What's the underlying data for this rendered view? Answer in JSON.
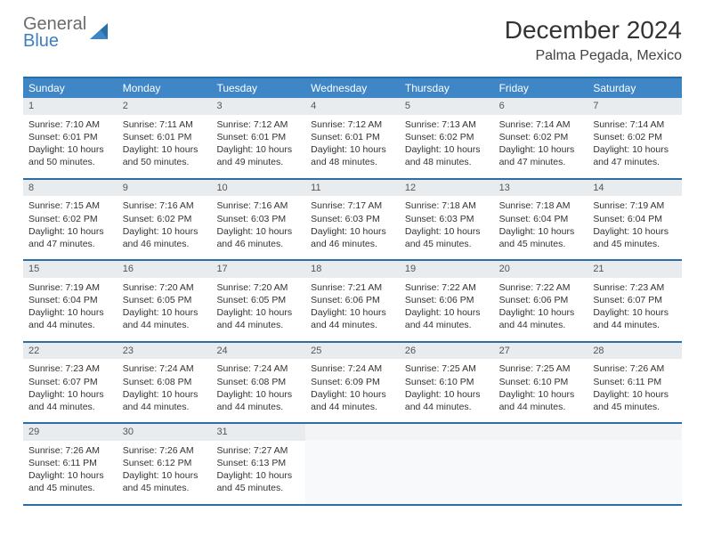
{
  "logo": {
    "line1": "General",
    "line2": "Blue"
  },
  "title": "December 2024",
  "location": "Palma Pegada, Mexico",
  "day_headers": [
    "Sunday",
    "Monday",
    "Tuesday",
    "Wednesday",
    "Thursday",
    "Friday",
    "Saturday"
  ],
  "header_bg": "#3f86c6",
  "border_color": "#2a6fa8",
  "daynum_bg": "#e9ecef",
  "font_family": "Arial",
  "weeks": [
    [
      {
        "n": "1",
        "sr": "Sunrise: 7:10 AM",
        "ss": "Sunset: 6:01 PM",
        "dl": "Daylight: 10 hours and 50 minutes."
      },
      {
        "n": "2",
        "sr": "Sunrise: 7:11 AM",
        "ss": "Sunset: 6:01 PM",
        "dl": "Daylight: 10 hours and 50 minutes."
      },
      {
        "n": "3",
        "sr": "Sunrise: 7:12 AM",
        "ss": "Sunset: 6:01 PM",
        "dl": "Daylight: 10 hours and 49 minutes."
      },
      {
        "n": "4",
        "sr": "Sunrise: 7:12 AM",
        "ss": "Sunset: 6:01 PM",
        "dl": "Daylight: 10 hours and 48 minutes."
      },
      {
        "n": "5",
        "sr": "Sunrise: 7:13 AM",
        "ss": "Sunset: 6:02 PM",
        "dl": "Daylight: 10 hours and 48 minutes."
      },
      {
        "n": "6",
        "sr": "Sunrise: 7:14 AM",
        "ss": "Sunset: 6:02 PM",
        "dl": "Daylight: 10 hours and 47 minutes."
      },
      {
        "n": "7",
        "sr": "Sunrise: 7:14 AM",
        "ss": "Sunset: 6:02 PM",
        "dl": "Daylight: 10 hours and 47 minutes."
      }
    ],
    [
      {
        "n": "8",
        "sr": "Sunrise: 7:15 AM",
        "ss": "Sunset: 6:02 PM",
        "dl": "Daylight: 10 hours and 47 minutes."
      },
      {
        "n": "9",
        "sr": "Sunrise: 7:16 AM",
        "ss": "Sunset: 6:02 PM",
        "dl": "Daylight: 10 hours and 46 minutes."
      },
      {
        "n": "10",
        "sr": "Sunrise: 7:16 AM",
        "ss": "Sunset: 6:03 PM",
        "dl": "Daylight: 10 hours and 46 minutes."
      },
      {
        "n": "11",
        "sr": "Sunrise: 7:17 AM",
        "ss": "Sunset: 6:03 PM",
        "dl": "Daylight: 10 hours and 46 minutes."
      },
      {
        "n": "12",
        "sr": "Sunrise: 7:18 AM",
        "ss": "Sunset: 6:03 PM",
        "dl": "Daylight: 10 hours and 45 minutes."
      },
      {
        "n": "13",
        "sr": "Sunrise: 7:18 AM",
        "ss": "Sunset: 6:04 PM",
        "dl": "Daylight: 10 hours and 45 minutes."
      },
      {
        "n": "14",
        "sr": "Sunrise: 7:19 AM",
        "ss": "Sunset: 6:04 PM",
        "dl": "Daylight: 10 hours and 45 minutes."
      }
    ],
    [
      {
        "n": "15",
        "sr": "Sunrise: 7:19 AM",
        "ss": "Sunset: 6:04 PM",
        "dl": "Daylight: 10 hours and 44 minutes."
      },
      {
        "n": "16",
        "sr": "Sunrise: 7:20 AM",
        "ss": "Sunset: 6:05 PM",
        "dl": "Daylight: 10 hours and 44 minutes."
      },
      {
        "n": "17",
        "sr": "Sunrise: 7:20 AM",
        "ss": "Sunset: 6:05 PM",
        "dl": "Daylight: 10 hours and 44 minutes."
      },
      {
        "n": "18",
        "sr": "Sunrise: 7:21 AM",
        "ss": "Sunset: 6:06 PM",
        "dl": "Daylight: 10 hours and 44 minutes."
      },
      {
        "n": "19",
        "sr": "Sunrise: 7:22 AM",
        "ss": "Sunset: 6:06 PM",
        "dl": "Daylight: 10 hours and 44 minutes."
      },
      {
        "n": "20",
        "sr": "Sunrise: 7:22 AM",
        "ss": "Sunset: 6:06 PM",
        "dl": "Daylight: 10 hours and 44 minutes."
      },
      {
        "n": "21",
        "sr": "Sunrise: 7:23 AM",
        "ss": "Sunset: 6:07 PM",
        "dl": "Daylight: 10 hours and 44 minutes."
      }
    ],
    [
      {
        "n": "22",
        "sr": "Sunrise: 7:23 AM",
        "ss": "Sunset: 6:07 PM",
        "dl": "Daylight: 10 hours and 44 minutes."
      },
      {
        "n": "23",
        "sr": "Sunrise: 7:24 AM",
        "ss": "Sunset: 6:08 PM",
        "dl": "Daylight: 10 hours and 44 minutes."
      },
      {
        "n": "24",
        "sr": "Sunrise: 7:24 AM",
        "ss": "Sunset: 6:08 PM",
        "dl": "Daylight: 10 hours and 44 minutes."
      },
      {
        "n": "25",
        "sr": "Sunrise: 7:24 AM",
        "ss": "Sunset: 6:09 PM",
        "dl": "Daylight: 10 hours and 44 minutes."
      },
      {
        "n": "26",
        "sr": "Sunrise: 7:25 AM",
        "ss": "Sunset: 6:10 PM",
        "dl": "Daylight: 10 hours and 44 minutes."
      },
      {
        "n": "27",
        "sr": "Sunrise: 7:25 AM",
        "ss": "Sunset: 6:10 PM",
        "dl": "Daylight: 10 hours and 44 minutes."
      },
      {
        "n": "28",
        "sr": "Sunrise: 7:26 AM",
        "ss": "Sunset: 6:11 PM",
        "dl": "Daylight: 10 hours and 45 minutes."
      }
    ],
    [
      {
        "n": "29",
        "sr": "Sunrise: 7:26 AM",
        "ss": "Sunset: 6:11 PM",
        "dl": "Daylight: 10 hours and 45 minutes."
      },
      {
        "n": "30",
        "sr": "Sunrise: 7:26 AM",
        "ss": "Sunset: 6:12 PM",
        "dl": "Daylight: 10 hours and 45 minutes."
      },
      {
        "n": "31",
        "sr": "Sunrise: 7:27 AM",
        "ss": "Sunset: 6:13 PM",
        "dl": "Daylight: 10 hours and 45 minutes."
      },
      {
        "empty": true
      },
      {
        "empty": true
      },
      {
        "empty": true
      },
      {
        "empty": true
      }
    ]
  ]
}
